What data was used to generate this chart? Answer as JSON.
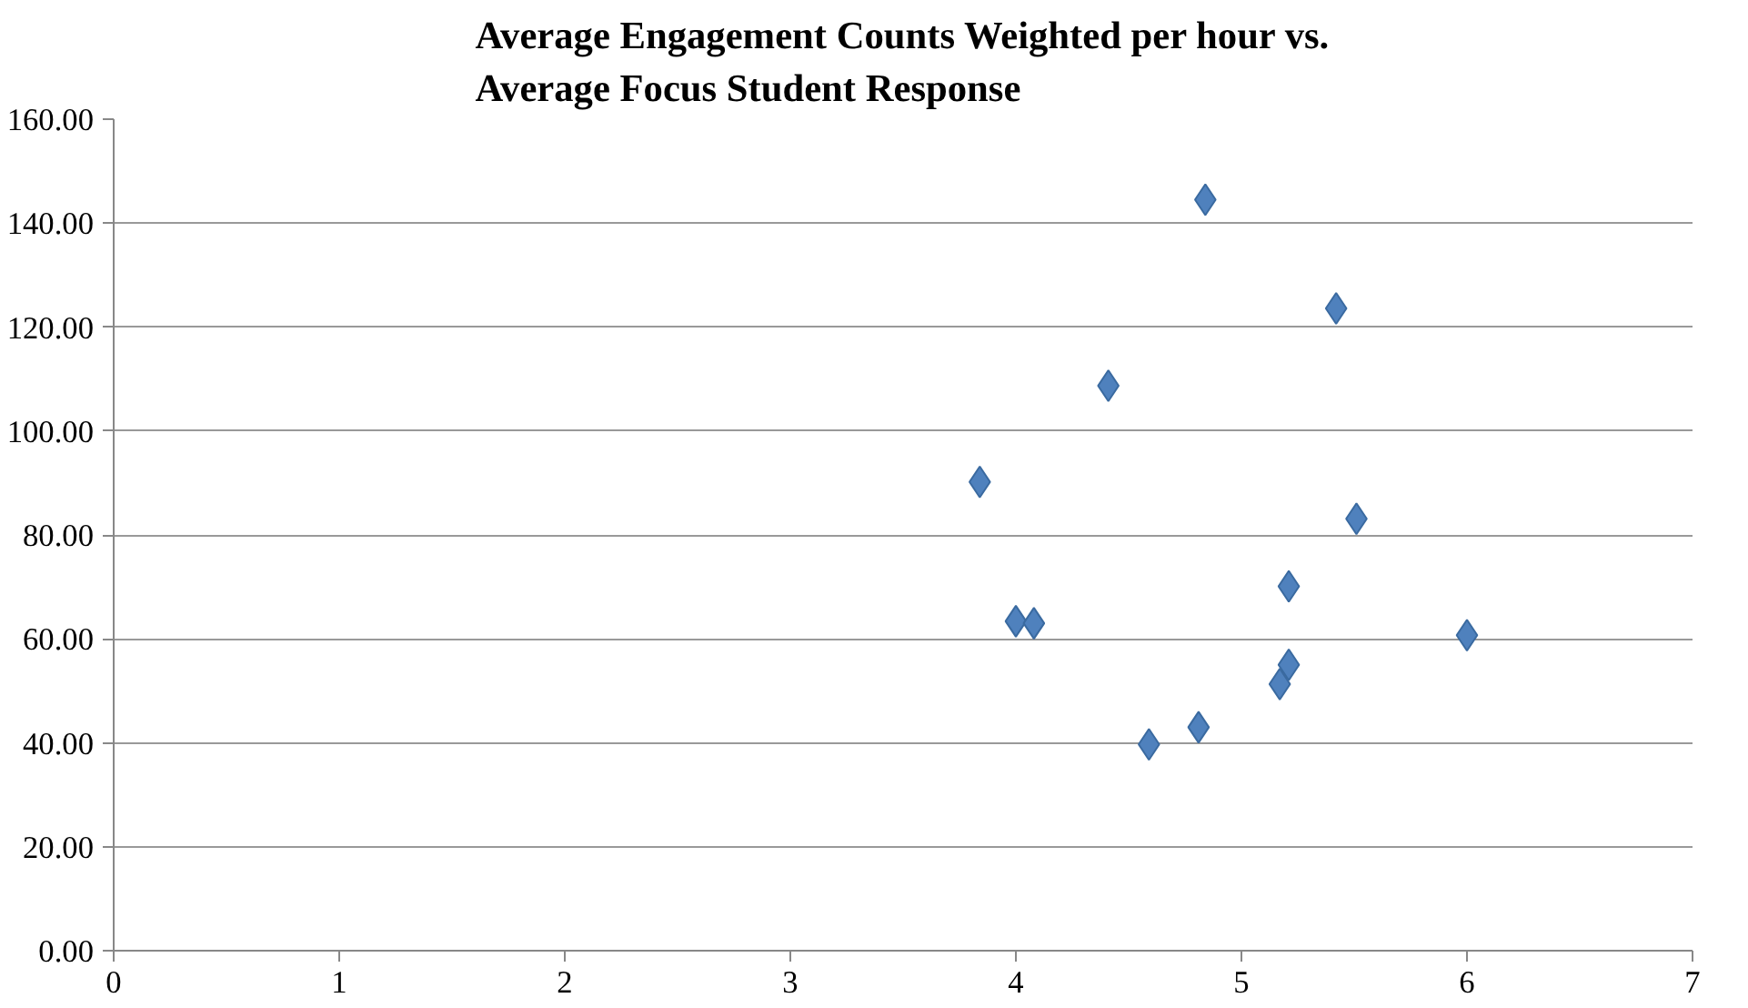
{
  "chart_data": {
    "type": "scatter",
    "title": "Average Engagement Counts Weighted per hour vs.\nAverage Focus Student Response",
    "x": [
      4.84,
      5.42,
      4.41,
      3.84,
      5.51,
      5.21,
      4.0,
      4.08,
      6.0,
      5.21,
      5.17,
      4.81,
      4.59
    ],
    "values": [
      144.5,
      123.6,
      108.7,
      90.2,
      83.1,
      70.1,
      63.4,
      63.0,
      60.7,
      55.0,
      51.3,
      43.0,
      39.7
    ],
    "color": "#4f81bd",
    "marker": "diamond",
    "xlim": [
      0,
      7
    ],
    "xticks": [
      0,
      1,
      2,
      3,
      4,
      5,
      6,
      7
    ],
    "ylim": [
      0,
      160
    ],
    "yticks": [
      {
        "value": 0,
        "label": "0.00"
      },
      {
        "value": 20,
        "label": "20.00"
      },
      {
        "value": 40,
        "label": "40.00"
      },
      {
        "value": 60,
        "label": "60.00"
      },
      {
        "value": 80,
        "label": "80.00"
      },
      {
        "value": 100,
        "label": "100.00"
      },
      {
        "value": 120,
        "label": "120.00"
      },
      {
        "value": 140,
        "label": "140.00"
      },
      {
        "value": 160,
        "label": "160.00"
      }
    ],
    "grid": "y"
  }
}
